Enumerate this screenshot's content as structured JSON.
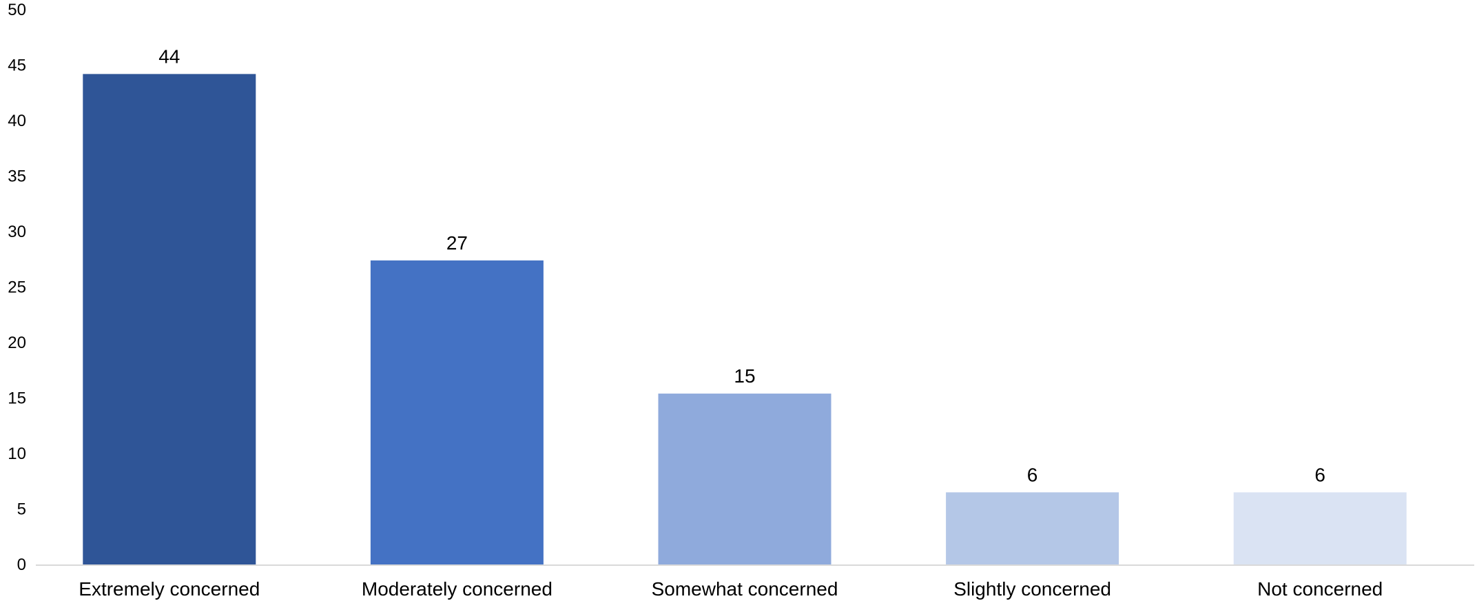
{
  "chart_data": {
    "type": "bar",
    "title": "",
    "xlabel": "",
    "ylabel": "",
    "categories": [
      "Extremely concerned",
      "Moderately concerned",
      "Somewhat concerned",
      "Slightly concerned",
      "Not concerned"
    ],
    "values": [
      44.2,
      27.4,
      15.4,
      6.5,
      6.5
    ],
    "data_labels": [
      "44",
      "27",
      "15",
      "6",
      "6"
    ],
    "ylim": [
      0,
      50
    ],
    "yticks": [
      0,
      5,
      10,
      15,
      20,
      25,
      30,
      35,
      40,
      45,
      50
    ],
    "grid": false,
    "legend": "none",
    "bar_colors": [
      "#2F5597",
      "#4472C4",
      "#8FAADC",
      "#B4C7E7",
      "#DAE3F3"
    ],
    "axis_color": "#d9d9d9"
  }
}
